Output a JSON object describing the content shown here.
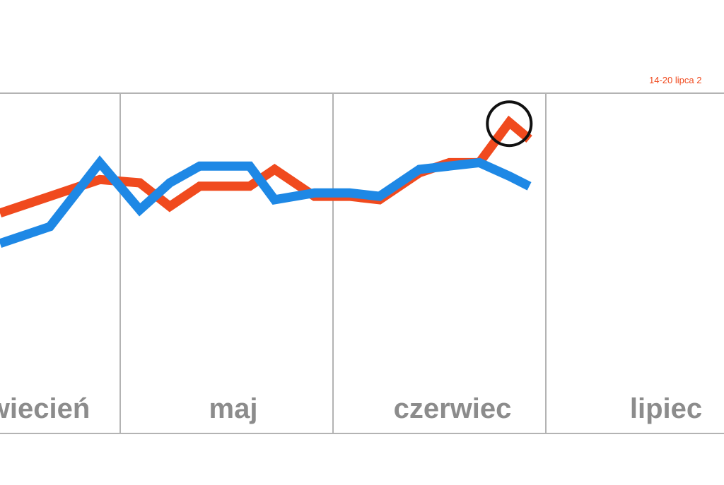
{
  "chart_data": {
    "type": "line",
    "title": "",
    "xlabel": "",
    "ylabel": "",
    "categories": [
      "kwiecień",
      "maj",
      "czerwiec",
      "lipiec"
    ],
    "month_labels_visible": [
      "wiecień",
      "maj",
      "czerwiec",
      "lipiec"
    ],
    "x_range_weeks": [
      0,
      14.5
    ],
    "y_range": [
      0,
      100
    ],
    "grid": "vertical month dividers",
    "legend": "none",
    "series": [
      {
        "color": "#f04a1e",
        "points": [
          [
            0,
            65
          ],
          [
            1,
            70
          ],
          [
            2,
            75
          ],
          [
            2.8,
            74
          ],
          [
            3.4,
            67
          ],
          [
            4,
            73
          ],
          [
            5,
            73
          ],
          [
            5.5,
            78
          ],
          [
            6.3,
            70
          ],
          [
            7,
            70
          ],
          [
            7.6,
            69
          ],
          [
            8.4,
            77
          ],
          [
            9,
            80
          ],
          [
            9.6,
            80
          ],
          [
            10.2,
            92
          ],
          [
            10.6,
            87
          ]
        ]
      },
      {
        "color": "#1e88e5",
        "points": [
          [
            0,
            56
          ],
          [
            1,
            61
          ],
          [
            2,
            80
          ],
          [
            2.8,
            66
          ],
          [
            3.4,
            74
          ],
          [
            4,
            79
          ],
          [
            5,
            79
          ],
          [
            5.5,
            69
          ],
          [
            6.3,
            71
          ],
          [
            7,
            71
          ],
          [
            7.6,
            70
          ],
          [
            8.4,
            78
          ],
          [
            9,
            79
          ],
          [
            9.6,
            80
          ],
          [
            10.2,
            76
          ],
          [
            10.6,
            73
          ]
        ]
      }
    ],
    "annotation": {
      "text": "14-20 lipca 2",
      "color": "#f04a1e",
      "x": 10.2,
      "y": 92
    }
  }
}
